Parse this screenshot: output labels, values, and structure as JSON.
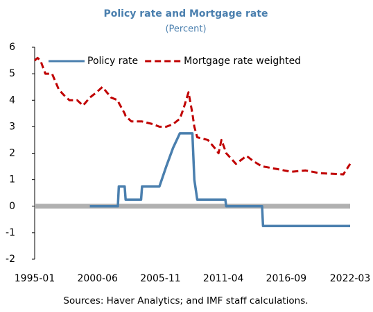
{
  "chart_data": {
    "type": "line",
    "title": "Policy rate and Mortgage rate",
    "subtitle": "(Percent)",
    "source": "Sources: Haver Analytics; and IMF staff calculations.",
    "x": [
      "1995-01",
      "1995-04",
      "1995-07",
      "1995-12",
      "1996-07",
      "1997-02",
      "1997-07",
      "1998-01",
      "1998-09",
      "1999-03",
      "1999-10",
      "2000-05",
      "2000-11",
      "2001-08",
      "2002-03",
      "2002-04",
      "2002-10",
      "2002-11",
      "2003-05",
      "2004-03",
      "2004-04",
      "2005-03",
      "2005-10",
      "2006-05",
      "2006-12",
      "2007-07",
      "2007-11",
      "2008-04",
      "2008-08",
      "2008-10",
      "2009-01",
      "2009-12",
      "2010-07",
      "2010-11",
      "2011-02",
      "2011-06",
      "2011-07",
      "2012-05",
      "2013-04",
      "2013-11",
      "2014-08",
      "2014-09",
      "2015-12",
      "2017-02",
      "2018-05",
      "2019-07",
      "2021-08",
      "2022-03"
    ],
    "series": [
      {
        "name": "Policy rate",
        "color": "#4a7fae",
        "dash": false,
        "values": [
          null,
          null,
          null,
          null,
          null,
          null,
          null,
          null,
          null,
          null,
          0,
          0,
          0,
          0,
          0,
          0.75,
          0.75,
          0.25,
          0.25,
          0.25,
          0.75,
          0.75,
          0.75,
          1.5,
          2.2,
          2.75,
          2.75,
          2.75,
          2.75,
          1.0,
          0.25,
          0.25,
          0.25,
          0.25,
          0.25,
          0.25,
          0,
          0,
          0,
          0,
          0,
          -0.75,
          -0.75,
          -0.75,
          -0.75,
          -0.75,
          -0.75,
          -0.75
        ]
      },
      {
        "name": "Mortgage rate weighted",
        "color": "#c00000",
        "dash": true,
        "values": [
          5.5,
          5.6,
          5.5,
          5.0,
          5.0,
          4.4,
          4.2,
          4.0,
          4.0,
          3.8,
          4.1,
          4.3,
          4.5,
          4.1,
          4.0,
          3.9,
          3.5,
          3.4,
          3.2,
          3.2,
          3.2,
          3.1,
          3.0,
          3.0,
          3.1,
          3.3,
          3.7,
          4.3,
          3.5,
          3.0,
          2.6,
          2.5,
          2.2,
          2.0,
          2.5,
          2.1,
          2.0,
          1.6,
          1.9,
          1.7,
          1.5,
          1.5,
          1.4,
          1.3,
          1.35,
          1.25,
          1.2,
          1.6
        ]
      }
    ],
    "xlim": [
      "1995-01",
      "2022-03"
    ],
    "xticks": [
      "1995-01",
      "2000-06",
      "2005-11",
      "2011-04",
      "2016-09",
      "2022-03"
    ],
    "ylim": [
      -2,
      6
    ],
    "yticks": [
      -2,
      -1,
      0,
      1,
      2,
      3,
      4,
      5,
      6
    ],
    "zero_line_color": "#b0b0b0",
    "title_color": "#4a7fae",
    "legend": "top"
  }
}
